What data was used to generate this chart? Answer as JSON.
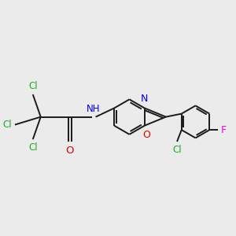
{
  "background_color": "#ebebeb",
  "bond_color": "#1a1a1a",
  "bond_width": 1.4,
  "atom_colors": {
    "Cl": "#22aa22",
    "N": "#0000ee",
    "O": "#dd0000",
    "F": "#ee00ee",
    "C": "#1a1a1a"
  },
  "font_size": 8.5,
  "figsize": [
    3.0,
    3.0
  ],
  "dpi": 100
}
